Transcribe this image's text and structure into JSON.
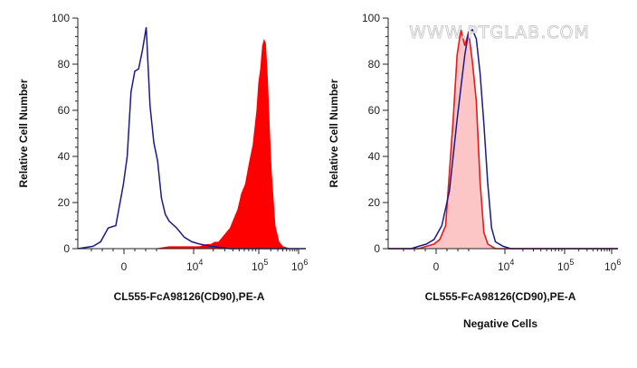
{
  "watermark": "WWW.PTGLAB.COM",
  "colors": {
    "stained_fill": "#ff0000",
    "stained_line": "#e41a1c",
    "negative_fill": "#fcc6c6",
    "control_line": "#1a1a8a",
    "axis": "#222222"
  },
  "chart_data": [
    {
      "type": "area",
      "title": "",
      "xlabel": "CL555-FcA98126(CD90),PE-A",
      "ylabel": "Relative Cell Number",
      "caption": "",
      "ylim": [
        0,
        100
      ],
      "y_ticks": [
        "0",
        "20",
        "40",
        "60",
        "80",
        "100"
      ],
      "x_ticks": [
        {
          "base": "0",
          "exp": ""
        },
        {
          "base": "10",
          "exp": "4"
        },
        {
          "base": "10",
          "exp": "5"
        },
        {
          "base": "10",
          "exp": "6"
        }
      ],
      "x_scale": "biexponential (channel 0 to 6 decades)",
      "grid": false,
      "series": [
        {
          "style": "filled",
          "color": "#ff0000",
          "x": [
            1.2,
            1.6,
            2.0,
            2.4,
            2.7,
            3.0,
            3.2,
            3.4,
            3.5,
            3.6,
            3.7,
            3.8,
            3.9,
            4.0,
            4.1,
            4.2,
            4.3,
            4.35,
            4.4,
            4.5,
            4.6,
            4.7,
            4.75,
            4.8,
            4.85,
            4.9,
            4.95,
            5.0,
            5.05,
            5.1,
            5.2,
            5.3,
            5.4,
            5.6
          ],
          "values": [
            0,
            0,
            0,
            1,
            1,
            1,
            1,
            2,
            2,
            3,
            3,
            5,
            7,
            9,
            13,
            17,
            24,
            26,
            28,
            37,
            45,
            60,
            72,
            78,
            88,
            91,
            89,
            74,
            53,
            34,
            10,
            3,
            1,
            0
          ]
        },
        {
          "style": "line",
          "color": "#1a1a8a",
          "x": [
            0.0,
            0.4,
            0.6,
            0.8,
            1.0,
            1.2,
            1.3,
            1.4,
            1.5,
            1.6,
            1.7,
            1.8,
            1.9,
            2.0,
            2.1,
            2.2,
            2.3,
            2.4,
            2.6,
            2.8,
            3.0,
            3.2,
            3.5,
            4.0,
            5.0,
            6.0
          ],
          "values": [
            0,
            1,
            3,
            9,
            10,
            28,
            40,
            68,
            77,
            78,
            86,
            96,
            62,
            46,
            38,
            22,
            15,
            12,
            9,
            5,
            3,
            2,
            1,
            0,
            0,
            0
          ]
        }
      ]
    },
    {
      "type": "area",
      "title": "",
      "xlabel": "CL555-FcA98126(CD90),PE-A",
      "ylabel": "Relative Cell Number",
      "caption": "Negative Cells",
      "ylim": [
        0,
        100
      ],
      "y_ticks": [
        "0",
        "20",
        "40",
        "60",
        "80",
        "100"
      ],
      "x_ticks": [
        {
          "base": "0",
          "exp": ""
        },
        {
          "base": "10",
          "exp": "4"
        },
        {
          "base": "10",
          "exp": "5"
        },
        {
          "base": "10",
          "exp": "6"
        }
      ],
      "x_scale": "biexponential (channel 0 to 6 decades)",
      "grid": false,
      "series": [
        {
          "style": "filled-outline",
          "color": "#e41a1c",
          "fill": "#fcc6c6",
          "x": [
            0.0,
            0.8,
            1.0,
            1.2,
            1.35,
            1.5,
            1.6,
            1.7,
            1.8,
            1.9,
            2.0,
            2.1,
            2.2,
            2.3,
            2.4,
            2.5,
            2.6,
            2.7,
            2.8,
            3.0,
            6.0
          ],
          "values": [
            0,
            0,
            1,
            2,
            4,
            10,
            33,
            57,
            84,
            95,
            88,
            94,
            81,
            64,
            29,
            7,
            2,
            1,
            0,
            0,
            0
          ]
        },
        {
          "style": "line",
          "color": "#1a1a8a",
          "x": [
            0.0,
            0.6,
            0.8,
            1.0,
            1.2,
            1.4,
            1.6,
            1.8,
            1.9,
            2.0,
            2.1,
            2.2,
            2.3,
            2.4,
            2.5,
            2.6,
            2.7,
            2.8,
            3.0,
            3.2,
            6.0
          ],
          "values": [
            0,
            0,
            1,
            2,
            4,
            10,
            25,
            56,
            70,
            84,
            94,
            95,
            91,
            76,
            54,
            28,
            9,
            3,
            1,
            0,
            0
          ]
        }
      ]
    }
  ]
}
